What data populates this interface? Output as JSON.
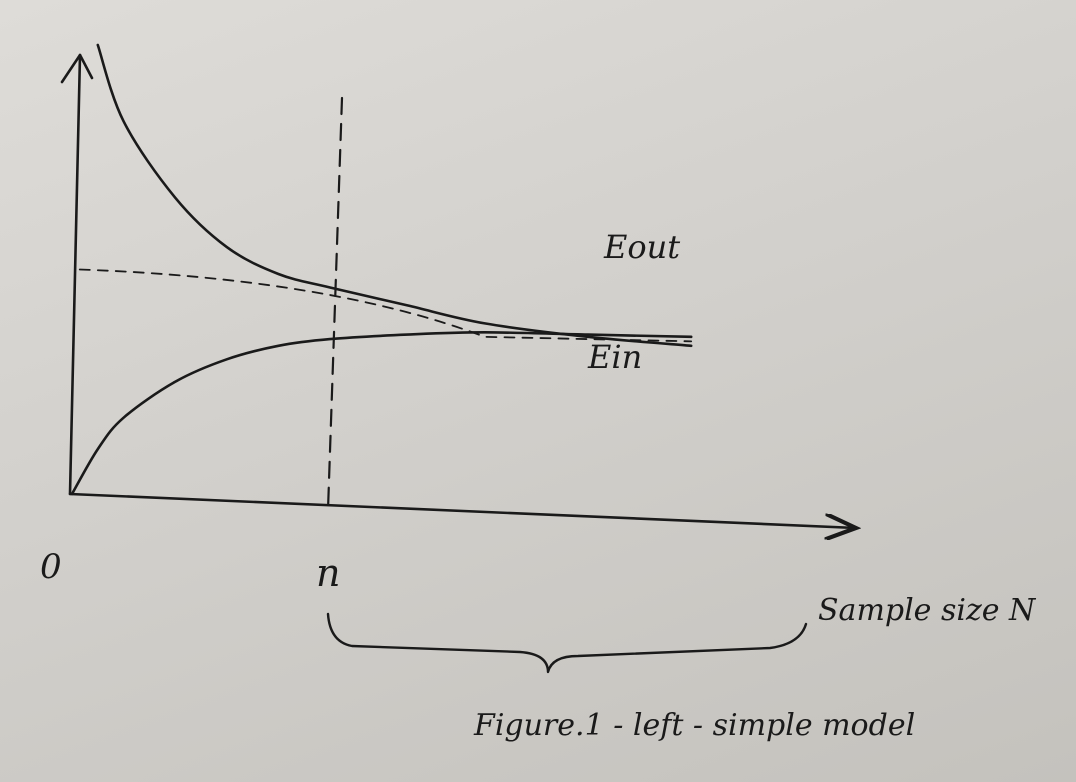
{
  "chart_data": {
    "type": "line",
    "title": "",
    "xlabel": "Sample size N",
    "ylabel": "",
    "x_ticks": [
      {
        "label": "0",
        "value": 0
      },
      {
        "label": "n",
        "value": 1
      }
    ],
    "marker_line": {
      "x": 1,
      "style": "dashed"
    },
    "asymptote": {
      "style": "dashed"
    },
    "series": [
      {
        "name": "Eout",
        "x": [
          0.1,
          0.2,
          0.4,
          0.6,
          0.8,
          1.0,
          1.3,
          1.6,
          2.0,
          2.4
        ],
        "y": [
          1.0,
          0.83,
          0.66,
          0.55,
          0.49,
          0.46,
          0.42,
          0.38,
          0.35,
          0.33
        ]
      },
      {
        "name": "Ein",
        "x": [
          0.0,
          0.1,
          0.2,
          0.4,
          0.6,
          0.8,
          1.0,
          1.3,
          1.6,
          2.0,
          2.4
        ],
        "y": [
          0.0,
          0.1,
          0.17,
          0.25,
          0.3,
          0.33,
          0.345,
          0.355,
          0.36,
          0.355,
          0.35
        ]
      }
    ],
    "annotations": [
      {
        "text": "Figure.1 - left - simple model"
      }
    ]
  }
}
